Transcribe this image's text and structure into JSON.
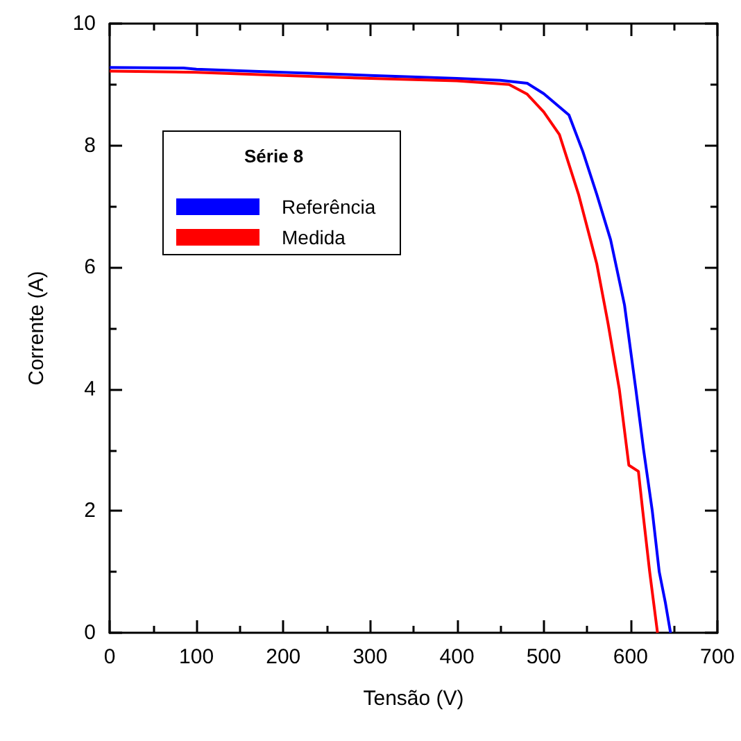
{
  "chart_data": {
    "type": "line",
    "xlabel": "Tensão (V)",
    "ylabel": "Corrente (A)",
    "legend_title": "Série 8",
    "xlim": [
      0,
      700
    ],
    "xticks": [
      0,
      100,
      200,
      300,
      400,
      500,
      600,
      700
    ],
    "ylim": [
      0,
      10
    ],
    "yticks": [
      0,
      2,
      4,
      6,
      8,
      10
    ],
    "grid": false,
    "legend": "top left",
    "marker": "none",
    "line_style": "solid",
    "series": [
      {
        "name": "Referência",
        "color": "#0000ff",
        "x": [
          0,
          85,
          100,
          200,
          300,
          400,
          450,
          481,
          500,
          529,
          545,
          561,
          577,
          593,
          606,
          615,
          625,
          633,
          640,
          646
        ],
        "values": [
          9.28,
          9.27,
          9.25,
          9.2,
          9.15,
          9.1,
          9.07,
          9.02,
          8.85,
          8.5,
          7.9,
          7.2,
          6.45,
          5.38,
          4.0,
          3.0,
          2.0,
          1.0,
          0.5,
          0.0
        ]
      },
      {
        "name": "Medida",
        "color": "#ff0000",
        "x": [
          0,
          100,
          200,
          300,
          400,
          460,
          481,
          500,
          518,
          540,
          561,
          574,
          587,
          598,
          609,
          614,
          622,
          631
        ],
        "values": [
          9.22,
          9.2,
          9.15,
          9.1,
          9.06,
          9.0,
          8.84,
          8.55,
          8.18,
          7.2,
          6.06,
          5.08,
          4.0,
          2.75,
          2.65,
          2.0,
          1.0,
          0.0
        ]
      }
    ]
  }
}
